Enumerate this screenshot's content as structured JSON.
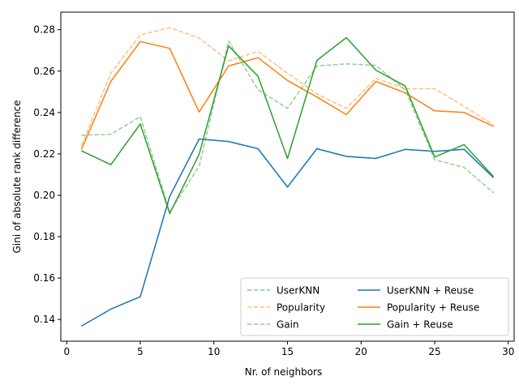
{
  "chart_data": {
    "type": "line",
    "xlabel": "Nr. of neighbors",
    "ylabel": "Gini of absolute rank difference",
    "xlim": [
      -0.4,
      30.4
    ],
    "ylim": [
      0.1295,
      0.2885
    ],
    "xticks": [
      0,
      5,
      10,
      15,
      20,
      25,
      30
    ],
    "yticks": [
      0.14,
      0.16,
      0.18,
      0.2,
      0.22,
      0.24,
      0.26,
      0.28
    ],
    "ytick_labels": [
      "0.14",
      "0.16",
      "0.18",
      "0.20",
      "0.22",
      "0.24",
      "0.26",
      "0.28"
    ],
    "grid": false,
    "legend": {
      "placement": "lower-right",
      "columns": 2
    },
    "x": [
      1,
      3,
      5,
      7,
      9,
      11,
      13,
      15,
      17,
      19,
      21,
      23,
      25,
      27,
      29
    ],
    "series": [
      {
        "name": "UserKNN",
        "color": "#1f77b4",
        "style": "dashed",
        "values": [
          0.1368,
          0.145,
          0.151,
          0.1995,
          0.2272,
          0.226,
          0.2225,
          0.204,
          0.2225,
          0.2188,
          0.2178,
          0.2222,
          0.2212,
          0.2222,
          0.2085
        ]
      },
      {
        "name": "Popularity",
        "color": "#ff7f0e",
        "style": "dashed",
        "values": [
          0.224,
          0.259,
          0.2775,
          0.281,
          0.276,
          0.265,
          0.2695,
          0.259,
          0.249,
          0.242,
          0.2565,
          0.2515,
          0.2515,
          0.243,
          0.234
        ]
      },
      {
        "name": "Gain",
        "color": "#2ca02c",
        "style": "dashed",
        "values": [
          0.229,
          0.2295,
          0.238,
          0.192,
          0.214,
          0.2745,
          0.251,
          0.242,
          0.2625,
          0.2635,
          0.2628,
          0.251,
          0.2172,
          0.2135,
          0.2012
        ]
      },
      {
        "name": "UserKNN + Reuse",
        "color": "#1f77b4",
        "style": "solid",
        "values": [
          0.1368,
          0.145,
          0.151,
          0.1995,
          0.2272,
          0.226,
          0.2225,
          0.204,
          0.2225,
          0.2188,
          0.2178,
          0.2222,
          0.2212,
          0.2222,
          0.2085
        ]
      },
      {
        "name": "Popularity + Reuse",
        "color": "#ff7f0e",
        "style": "solid",
        "values": [
          0.2222,
          0.255,
          0.2743,
          0.271,
          0.2402,
          0.2625,
          0.2665,
          0.2555,
          0.2475,
          0.239,
          0.255,
          0.2495,
          0.2408,
          0.24,
          0.2333
        ]
      },
      {
        "name": "Gain + Reuse",
        "color": "#2ca02c",
        "style": "solid",
        "values": [
          0.2215,
          0.2148,
          0.2345,
          0.1912,
          0.2198,
          0.2722,
          0.2575,
          0.2178,
          0.2652,
          0.2762,
          0.2605,
          0.2528,
          0.2185,
          0.2245,
          0.209
        ]
      }
    ]
  }
}
